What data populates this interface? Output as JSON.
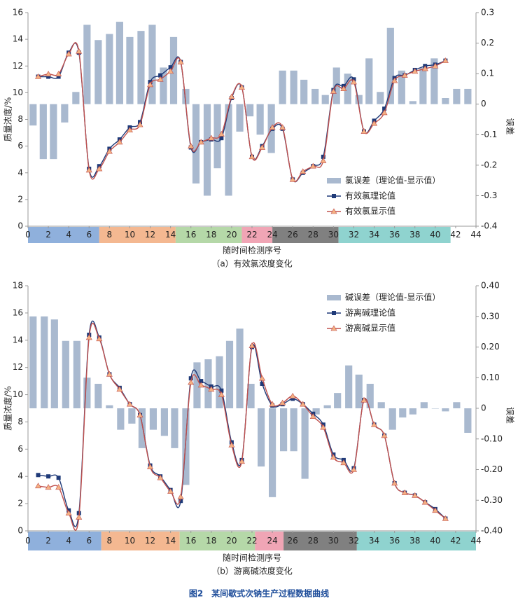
{
  "chart_data": [
    {
      "type": "combo",
      "ylabel": "质量浓度/%",
      "y2label": "误差",
      "xlabel": "随时间检测序号",
      "caption": "（a）有效氯浓度变化",
      "xlim": [
        0,
        44
      ],
      "xticks": [
        0,
        2,
        4,
        6,
        8,
        10,
        12,
        14,
        16,
        18,
        20,
        22,
        24,
        26,
        28,
        30,
        32,
        34,
        36,
        38,
        40,
        42,
        44
      ],
      "ylim": [
        0,
        16
      ],
      "yticks": [
        0,
        2,
        4,
        6,
        8,
        10,
        12,
        14,
        16
      ],
      "y2lim": [
        -0.4,
        0.3
      ],
      "y2ticks": [
        -0.4,
        -0.3,
        -0.2,
        -0.1,
        0,
        0.1,
        0.2,
        0.3
      ],
      "legend": "lower right",
      "bands": [
        {
          "from": 0,
          "to": 7,
          "color": "#8fb0dc"
        },
        {
          "from": 7,
          "to": 14.5,
          "color": "#f4b891"
        },
        {
          "from": 14.5,
          "to": 21,
          "color": "#b5d8a8"
        },
        {
          "from": 21,
          "to": 24,
          "color": "#f0a5b5"
        },
        {
          "from": 24,
          "to": 30.5,
          "color": "#808080"
        },
        {
          "from": 30.5,
          "to": 41.5,
          "color": "#8fd3cf"
        }
      ],
      "series": [
        {
          "name": "氯误差（理论值-显示值）",
          "type": "bar",
          "axis": "y2",
          "color": "#a9b9cf",
          "x": [
            0.5,
            1.5,
            2.5,
            3.6,
            4.7,
            5.8,
            6.9,
            8.0,
            9.0,
            10.0,
            11.1,
            12.2,
            13.3,
            14.3,
            15.5,
            16.5,
            17.6,
            18.6,
            19.7,
            20.8,
            21.8,
            22.8,
            23.9,
            25.0,
            26.1,
            27.1,
            28.2,
            29.2,
            30.3,
            31.4,
            32.5,
            33.5,
            34.6,
            35.6,
            36.7,
            37.8,
            38.8,
            39.9,
            41.0,
            42.1,
            43.2
          ],
          "values": [
            -0.07,
            -0.18,
            -0.18,
            -0.06,
            0.04,
            0.26,
            0.21,
            0.23,
            0.27,
            0.22,
            0.24,
            0.26,
            0.12,
            0.22,
            0.05,
            -0.26,
            -0.3,
            -0.21,
            -0.3,
            -0.09,
            -0.04,
            -0.1,
            -0.16,
            0.11,
            0.11,
            0.08,
            0.05,
            0.03,
            0.12,
            0.1,
            0.03,
            0.15,
            0.04,
            0.25,
            0.11,
            0.01,
            0.12,
            0.15,
            0.02,
            0.05,
            0.05
          ]
        },
        {
          "name": "有效氯理论值",
          "type": "line",
          "marker": "square",
          "color": "#1f3a78",
          "x": [
            1,
            2,
            3,
            4,
            5,
            6,
            7,
            8,
            9,
            10,
            11,
            12,
            13,
            14,
            15,
            16,
            17,
            18,
            19,
            20,
            21,
            22,
            23,
            24,
            25,
            26,
            27,
            28,
            29,
            30,
            31,
            32,
            33,
            34,
            35,
            36,
            37,
            38,
            39,
            40,
            41
          ],
          "values": [
            11.2,
            11.2,
            11.2,
            13.0,
            13.0,
            4.3,
            4.5,
            5.8,
            6.5,
            7.4,
            7.8,
            10.8,
            11.3,
            11.9,
            12.3,
            5.9,
            6.3,
            6.5,
            6.6,
            9.6,
            10.4,
            5.2,
            6.0,
            7.3,
            7.3,
            3.5,
            4.0,
            4.5,
            5.2,
            10.2,
            10.5,
            11.0,
            7.1,
            7.9,
            8.8,
            11.1,
            11.3,
            11.7,
            12.0,
            12.1,
            12.4
          ]
        },
        {
          "name": "有效氯显示值",
          "type": "line",
          "marker": "triangle",
          "color": "#c0504d",
          "marker_color": "#f4b183",
          "x": [
            1,
            2,
            3,
            4,
            5,
            6,
            7,
            8,
            9,
            10,
            11,
            12,
            13,
            14,
            15,
            16,
            17,
            18,
            19,
            20,
            21,
            22,
            23,
            24,
            25,
            26,
            27,
            28,
            29,
            30,
            31,
            32,
            33,
            34,
            35,
            36,
            37,
            38,
            39,
            40,
            41
          ],
          "values": [
            11.2,
            11.4,
            11.4,
            12.9,
            13.1,
            4.2,
            4.3,
            5.6,
            6.3,
            7.2,
            7.6,
            10.6,
            11.0,
            11.6,
            12.3,
            6.0,
            6.3,
            6.6,
            6.9,
            9.7,
            10.4,
            5.2,
            5.9,
            7.4,
            7.4,
            3.5,
            4.1,
            4.5,
            4.9,
            10.1,
            10.3,
            10.8,
            7.1,
            7.7,
            8.5,
            10.9,
            11.3,
            11.6,
            11.8,
            12.0,
            12.4
          ]
        }
      ]
    },
    {
      "type": "combo",
      "ylabel": "质量浓度/%",
      "y2label": "误差",
      "xlabel": "随时间检测序号",
      "caption": "（b）游离碱浓度变化",
      "xlim": [
        0,
        44
      ],
      "xticks": [
        0,
        2,
        4,
        6,
        8,
        10,
        12,
        14,
        16,
        18,
        20,
        22,
        24,
        26,
        28,
        30,
        32,
        34,
        36,
        38,
        40,
        42,
        44
      ],
      "ylim": [
        0,
        18
      ],
      "yticks": [
        0,
        2,
        4,
        6,
        8,
        10,
        12,
        14,
        16,
        18
      ],
      "y2lim": [
        -0.4,
        0.4
      ],
      "y2ticks": [
        {
          "value": -0.4,
          "label": "-0.40"
        },
        {
          "value": -0.3,
          "label": "-0.30"
        },
        {
          "value": -0.2,
          "label": "-0.20"
        },
        {
          "value": -0.1,
          "label": "-0.10"
        },
        0,
        {
          "value": 0.1,
          "label": "0.10"
        },
        {
          "value": 0.2,
          "label": "0.20"
        },
        {
          "value": 0.3,
          "label": "0.30"
        },
        {
          "value": 0.4,
          "label": "0.40"
        }
      ],
      "legend": "upper right",
      "bands": [
        {
          "from": 0,
          "to": 7.2,
          "color": "#8fb0dc"
        },
        {
          "from": 7.2,
          "to": 14.9,
          "color": "#f4b891"
        },
        {
          "from": 14.9,
          "to": 22.3,
          "color": "#b5d8a8"
        },
        {
          "from": 22.3,
          "to": 25.1,
          "color": "#f0a5b5"
        },
        {
          "from": 25.1,
          "to": 32.3,
          "color": "#808080"
        },
        {
          "from": 32.3,
          "to": 44,
          "color": "#8fd3cf"
        }
      ],
      "series": [
        {
          "name": "碱误差（理论值-显示值）",
          "type": "bar",
          "axis": "y2",
          "color": "#a9b9cf",
          "x": [
            0.5,
            1.6,
            2.6,
            3.7,
            4.8,
            5.8,
            6.9,
            8.0,
            9.1,
            10.2,
            11.2,
            12.3,
            13.4,
            14.4,
            15.5,
            16.6,
            17.7,
            18.8,
            19.8,
            20.8,
            21.9,
            22.9,
            24.0,
            25.1,
            26.1,
            27.2,
            28.3,
            29.4,
            30.4,
            31.5,
            32.5,
            33.6,
            34.7,
            35.8,
            36.8,
            37.8,
            38.9,
            40.0,
            41.0,
            42.1,
            43.2
          ],
          "values": [
            0.3,
            0.3,
            0.29,
            0.22,
            0.22,
            0.1,
            0.08,
            0.01,
            -0.07,
            -0.05,
            -0.13,
            -0.07,
            -0.09,
            -0.13,
            -0.25,
            0.15,
            0.16,
            0.17,
            0.22,
            0.26,
            0.08,
            -0.19,
            -0.29,
            -0.14,
            -0.14,
            -0.23,
            -0.02,
            0.01,
            0.05,
            0.14,
            0.11,
            0.08,
            0.02,
            -0.07,
            -0.03,
            -0.02,
            0.02,
            0,
            -0.01,
            0.02,
            -0.08
          ]
        },
        {
          "name": "游离碱理论值",
          "type": "line",
          "marker": "square",
          "color": "#1f3a78",
          "x": [
            1,
            2,
            3,
            4,
            5,
            6,
            7,
            8,
            9,
            10,
            11,
            12,
            13,
            14,
            15,
            16,
            17,
            18,
            19,
            20,
            21,
            22,
            23,
            24,
            25,
            26,
            27,
            28,
            29,
            30,
            31,
            32,
            33,
            34,
            35,
            36,
            37,
            38,
            39,
            40,
            41
          ],
          "values": [
            4.1,
            4.0,
            3.9,
            1.5,
            1.3,
            14.4,
            14.2,
            11.5,
            10.5,
            9.3,
            8.5,
            4.8,
            4.0,
            3.0,
            2.2,
            11.2,
            11.0,
            10.6,
            10.3,
            6.5,
            5.2,
            13.5,
            10.8,
            9.2,
            9.3,
            9.7,
            9.3,
            8.6,
            7.8,
            5.6,
            5.2,
            4.6,
            9.6,
            7.8,
            7.0,
            3.5,
            2.8,
            2.6,
            2.1,
            1.6,
            0.9
          ]
        },
        {
          "name": "游离碱显示值",
          "type": "line",
          "marker": "triangle",
          "color": "#c0504d",
          "marker_color": "#f4b183",
          "x": [
            1,
            2,
            3,
            4,
            5,
            6,
            7,
            8,
            9,
            10,
            11,
            12,
            13,
            14,
            15,
            16,
            17,
            18,
            19,
            20,
            21,
            22,
            23,
            24,
            25,
            26,
            27,
            28,
            29,
            30,
            31,
            32,
            33,
            34,
            35,
            36,
            37,
            38,
            39,
            40,
            41
          ],
          "values": [
            3.3,
            3.2,
            3.2,
            1.3,
            1.0,
            14.2,
            14.1,
            11.5,
            10.4,
            9.3,
            8.5,
            4.7,
            3.9,
            2.9,
            2.5,
            10.9,
            10.7,
            10.4,
            10.0,
            6.3,
            5.1,
            13.6,
            11.2,
            9.3,
            9.4,
            9.9,
            9.3,
            8.4,
            7.6,
            5.4,
            5.0,
            4.5,
            9.6,
            7.8,
            7.0,
            3.5,
            2.8,
            2.6,
            2.1,
            1.5,
            0.9
          ]
        }
      ]
    }
  ],
  "figure_caption": "图2　某间歇式次钠生产过程数据曲线"
}
